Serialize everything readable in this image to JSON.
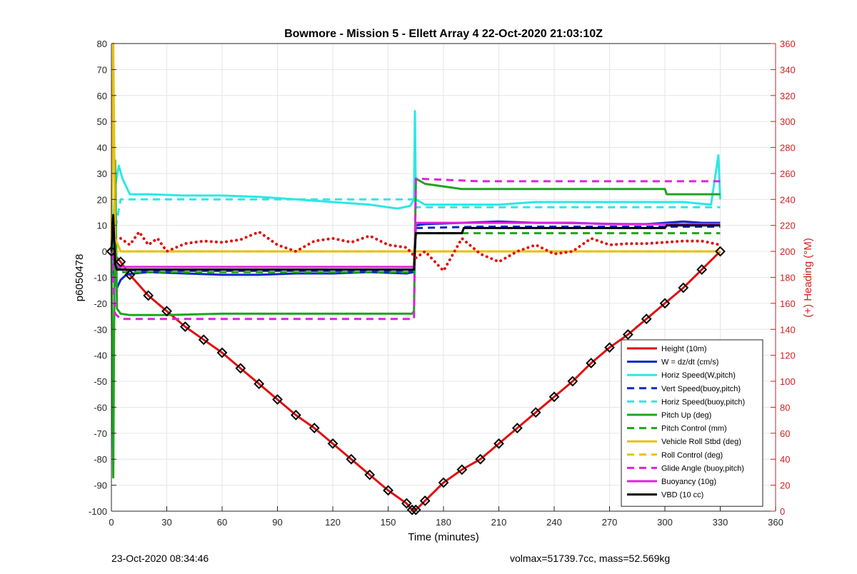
{
  "colors": {
    "height": "#e01010",
    "w": "#0a28c8",
    "horiz_speed": "#2ee6e6",
    "pitch": "#1ea51e",
    "roll": "#e8c010",
    "glide": "#e020e0",
    "vbd": "#000000",
    "right_axis": "#d02020",
    "grid": "#e6e6e6"
  },
  "footer": {
    "left": "23-Oct-2020 08:34:46",
    "right": "volmax=51739.7cc, mass=52.569kg"
  },
  "chart_data": {
    "type": "line",
    "title": "Bowmore - Mission 5 - Ellett Array 4 22-Oct-2020 21:03:10Z",
    "xlabel": "Time (minutes)",
    "ylabel": "p6050478",
    "ylabel_right": "(+) Heading (°M)",
    "xlim": [
      0,
      360
    ],
    "ylim": [
      -100,
      80
    ],
    "ylim_right": [
      0,
      360
    ],
    "xticks": [
      0,
      30,
      60,
      90,
      120,
      150,
      180,
      210,
      240,
      270,
      300,
      330,
      360
    ],
    "yticks": [
      -100,
      -90,
      -80,
      -70,
      -60,
      -50,
      -40,
      -30,
      -20,
      -10,
      0,
      10,
      20,
      30,
      40,
      50,
      60,
      70,
      80
    ],
    "yticks_right": [
      0,
      20,
      40,
      60,
      80,
      100,
      120,
      140,
      160,
      180,
      200,
      220,
      240,
      260,
      280,
      300,
      320,
      340,
      360
    ],
    "grid": true,
    "legend_position": "bottom-right",
    "series": [
      {
        "name": "Height (10m)",
        "style": "solid",
        "color": "#e01010",
        "x": [
          0,
          5,
          10,
          20,
          30,
          40,
          50,
          60,
          70,
          80,
          90,
          100,
          110,
          120,
          130,
          140,
          150,
          160,
          163,
          165,
          170,
          180,
          190,
          200,
          210,
          220,
          230,
          240,
          250,
          260,
          270,
          280,
          290,
          300,
          310,
          320,
          330
        ],
        "y": [
          0,
          -4,
          -9,
          -17,
          -23,
          -29,
          -34,
          -39,
          -45,
          -51,
          -57,
          -63,
          -68,
          -74,
          -80,
          -86,
          -92,
          -97,
          -99.5,
          -99.5,
          -96,
          -89,
          -84,
          -80,
          -74,
          -68,
          -62,
          -56,
          -50,
          -43,
          -37,
          -32,
          -26,
          -20,
          -14,
          -7,
          0
        ]
      },
      {
        "name": "W = dz/dt (cm/s)",
        "style": "solid",
        "color": "#0a28c8",
        "x": [
          0,
          1,
          3,
          5,
          8,
          12,
          20,
          40,
          60,
          80,
          100,
          120,
          140,
          160,
          164,
          165,
          170,
          190,
          210,
          230,
          250,
          270,
          290,
          300,
          310,
          320,
          330
        ],
        "y": [
          0,
          -8,
          -14,
          -11,
          -9,
          -8.5,
          -8,
          -8.5,
          -9,
          -9,
          -8.5,
          -8.5,
          -8,
          -8.5,
          -8,
          10,
          10.5,
          11,
          11.5,
          11,
          11,
          10.5,
          10.5,
          11,
          11.5,
          11,
          11
        ]
      },
      {
        "name": "Horiz Speed(W,pitch)",
        "style": "solid",
        "color": "#2ee6e6",
        "x": [
          0,
          2,
          4,
          6,
          10,
          20,
          40,
          60,
          80,
          100,
          120,
          140,
          155,
          162,
          164,
          164.5,
          165,
          170,
          190,
          210,
          230,
          250,
          270,
          290,
          310,
          325,
          329,
          330
        ],
        "y": [
          -10,
          25,
          33,
          28,
          22,
          22,
          21.5,
          21.5,
          21,
          20,
          19,
          18,
          16.5,
          17.5,
          20,
          54,
          20,
          18,
          18,
          18,
          19,
          19,
          19,
          19,
          19,
          18,
          37,
          20
        ]
      },
      {
        "name": "Vert Speed(buoy,pitch)",
        "style": "dashed",
        "color": "#0a28c8",
        "x": [
          0,
          5,
          20,
          60,
          100,
          140,
          164,
          165,
          200,
          240,
          280,
          330
        ],
        "y": [
          -2,
          -7,
          -7.5,
          -7.5,
          -7.5,
          -7.5,
          -7.5,
          9,
          9.5,
          9.5,
          9.5,
          9.5
        ]
      },
      {
        "name": "Horiz Speed(buoy,pitch)",
        "style": "dashed",
        "color": "#2ee6e6",
        "x": [
          0,
          5,
          20,
          60,
          100,
          140,
          164,
          165,
          200,
          240,
          280,
          330
        ],
        "y": [
          0,
          20,
          20,
          20,
          20,
          20,
          20,
          17,
          17,
          17,
          17,
          17
        ]
      },
      {
        "name": "Pitch Up (deg)",
        "style": "solid",
        "color": "#1ea51e",
        "x": [
          0,
          1,
          2,
          3,
          5,
          10,
          30,
          60,
          90,
          120,
          150,
          163,
          164,
          165,
          170,
          190,
          220,
          250,
          280,
          300,
          301,
          320,
          330
        ],
        "y": [
          0,
          -87,
          35,
          -22,
          -24,
          -24.5,
          -24.5,
          -24,
          -24,
          -24,
          -24,
          -24,
          -23,
          28,
          26,
          24,
          24,
          24,
          24,
          24,
          22,
          22,
          22
        ]
      },
      {
        "name": "Pitch Control (mm)",
        "style": "dashed",
        "color": "#1ea51e",
        "x": [
          0,
          5,
          60,
          120,
          164,
          165,
          220,
          330
        ],
        "y": [
          0,
          -8,
          -8,
          -8,
          -8,
          7,
          7,
          7
        ]
      },
      {
        "name": "Vehicle Roll Stbd (deg)",
        "style": "solid",
        "color": "#e8c010",
        "x": [
          0,
          1,
          2,
          5,
          8,
          15,
          30,
          45,
          60,
          75,
          90,
          105,
          120,
          135,
          150,
          164,
          165,
          180,
          195,
          210,
          225,
          240,
          255,
          270,
          285,
          300,
          315,
          330
        ],
        "y": [
          0,
          80,
          5,
          0,
          0,
          0,
          0,
          0,
          0,
          0,
          0,
          0,
          0,
          0,
          0,
          0,
          0,
          0,
          0,
          0,
          0,
          0,
          0,
          0,
          0,
          0,
          0,
          0
        ]
      },
      {
        "name": "Roll Control (deg)",
        "style": "dashed",
        "color": "#e8c010",
        "x": [
          0,
          5,
          30,
          60,
          90,
          120,
          150,
          164,
          165,
          200,
          240,
          280,
          330
        ],
        "y": [
          0,
          0,
          0,
          0,
          0,
          0,
          0,
          0,
          0,
          0,
          0,
          0,
          0
        ]
      },
      {
        "name": "Glide Angle (buoy,pitch)",
        "style": "dashed",
        "color": "#e020e0",
        "x": [
          0,
          2,
          5,
          20,
          60,
          100,
          140,
          164,
          165,
          200,
          240,
          280,
          320,
          330
        ],
        "y": [
          0,
          -24,
          -26,
          -26,
          -26,
          -26,
          -26,
          -26,
          28,
          27,
          27,
          27,
          27,
          27
        ]
      },
      {
        "name": "Buoyancy (10g)",
        "style": "solid",
        "color": "#e020e0",
        "x": [
          0,
          2,
          5,
          30,
          60,
          100,
          140,
          164,
          165,
          200,
          240,
          280,
          320,
          330
        ],
        "y": [
          0,
          -5,
          -6,
          -6,
          -6,
          -6,
          -6,
          -6,
          11,
          11,
          11,
          10.5,
          10.5,
          10.5
        ]
      },
      {
        "name": "VBD (10 cc)",
        "style": "solid",
        "color": "#000000",
        "x": [
          0,
          1,
          2,
          3,
          10,
          60,
          120,
          164,
          164.5,
          165,
          166,
          190,
          191,
          300,
          301,
          330
        ],
        "y": [
          0,
          14,
          -5,
          -7,
          -7,
          -7,
          -7,
          -7,
          2,
          7,
          7,
          7,
          9,
          9,
          10,
          10
        ]
      },
      {
        "name": "",
        "axis": "right",
        "style": "dotted",
        "color": "#e01010",
        "x": [
          5,
          10,
          15,
          20,
          25,
          30,
          40,
          50,
          60,
          70,
          80,
          90,
          100,
          110,
          120,
          130,
          140,
          150,
          160,
          165,
          170,
          180,
          190,
          200,
          210,
          220,
          230,
          240,
          250,
          260,
          270,
          280,
          290,
          300,
          310,
          320,
          330
        ],
        "y": [
          210,
          205,
          215,
          205,
          210,
          200,
          206,
          208,
          207,
          209,
          215,
          205,
          200,
          208,
          210,
          207,
          212,
          205,
          203,
          195,
          200,
          185,
          210,
          198,
          192,
          200,
          205,
          198,
          200,
          210,
          205,
          206,
          206,
          207,
          208,
          208,
          205
        ]
      }
    ]
  }
}
